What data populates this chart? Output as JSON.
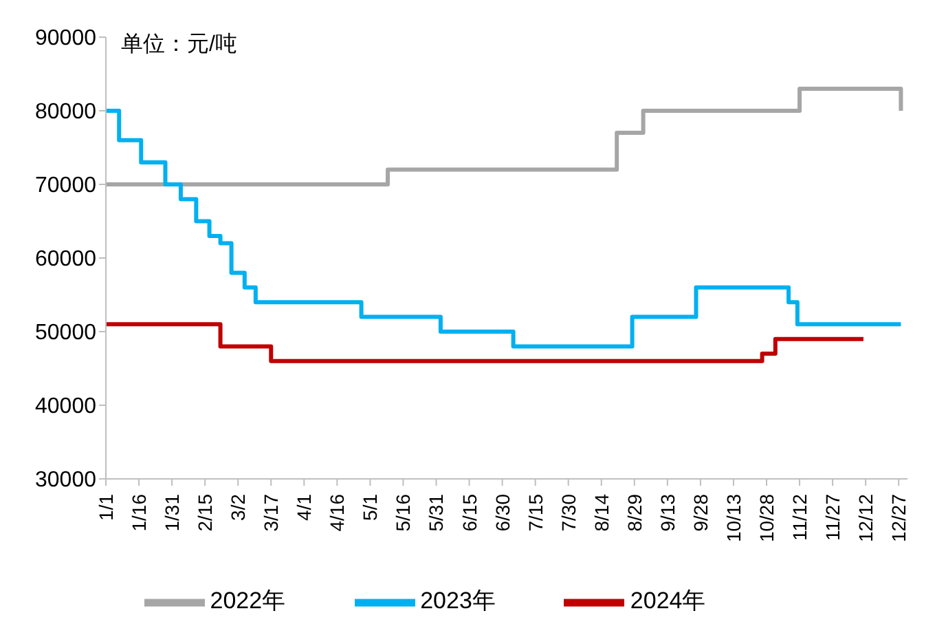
{
  "chart_data": {
    "type": "step",
    "ylabel": "单位：元/吨",
    "xlim": [
      "--01-01",
      "--12-31"
    ],
    "xticks": [
      {
        "value": "--01-01",
        "label": "1/1"
      },
      {
        "value": "--01-16",
        "label": "1/16"
      },
      {
        "value": "--01-31",
        "label": "1/31"
      },
      {
        "value": "--02-15",
        "label": "2/15"
      },
      {
        "value": "--03-02",
        "label": "3/2"
      },
      {
        "value": "--03-17",
        "label": "3/17"
      },
      {
        "value": "--04-01",
        "label": "4/1"
      },
      {
        "value": "--04-16",
        "label": "4/16"
      },
      {
        "value": "--05-01",
        "label": "5/1"
      },
      {
        "value": "--05-16",
        "label": "5/16"
      },
      {
        "value": "--05-31",
        "label": "5/31"
      },
      {
        "value": "--06-15",
        "label": "6/15"
      },
      {
        "value": "--06-30",
        "label": "6/30"
      },
      {
        "value": "--07-15",
        "label": "7/15"
      },
      {
        "value": "--07-30",
        "label": "7/30"
      },
      {
        "value": "--08-14",
        "label": "8/14"
      },
      {
        "value": "--08-29",
        "label": "8/29"
      },
      {
        "value": "--09-13",
        "label": "9/13"
      },
      {
        "value": "--09-28",
        "label": "9/28"
      },
      {
        "value": "--10-13",
        "label": "10/13"
      },
      {
        "value": "--10-28",
        "label": "10/28"
      },
      {
        "value": "--11-12",
        "label": "11/12"
      },
      {
        "value": "--11-27",
        "label": "11/27"
      },
      {
        "value": "--12-12",
        "label": "12/12"
      },
      {
        "value": "--12-27",
        "label": "12/27"
      }
    ],
    "ylim": [
      30000,
      90000
    ],
    "yticks": [
      30000,
      40000,
      50000,
      60000,
      70000,
      80000,
      90000
    ],
    "legend": "bottom",
    "series": [
      {
        "name": "2022年",
        "color": "#a6a6a6",
        "x": [
          "--01-01",
          "--05-09",
          "--08-21",
          "--09-02",
          "--11-12",
          "--12-28"
        ],
        "values": [
          70000,
          72000,
          77000,
          80000,
          83000,
          80000
        ]
      },
      {
        "name": "2023年",
        "color": "#00b0f0",
        "x": [
          "--01-01",
          "--01-07",
          "--01-17",
          "--01-28",
          "--02-04",
          "--02-11",
          "--02-17",
          "--02-22",
          "--02-27",
          "--03-05",
          "--03-10",
          "--04-27",
          "--06-02",
          "--07-05",
          "--08-28",
          "--09-26",
          "--11-07",
          "--11-11",
          "--12-28"
        ],
        "values": [
          80000,
          76000,
          73000,
          70000,
          68000,
          65000,
          63000,
          62000,
          58000,
          56000,
          54000,
          52000,
          50000,
          48000,
          52000,
          56000,
          54000,
          51000,
          51000
        ]
      },
      {
        "name": "2024年",
        "color": "#c00000",
        "x": [
          "--01-01",
          "--02-22",
          "--03-17",
          "--10-26",
          "--11-01",
          "--12-11"
        ],
        "values": [
          51000,
          48000,
          46000,
          47000,
          49000,
          49000
        ]
      }
    ]
  }
}
